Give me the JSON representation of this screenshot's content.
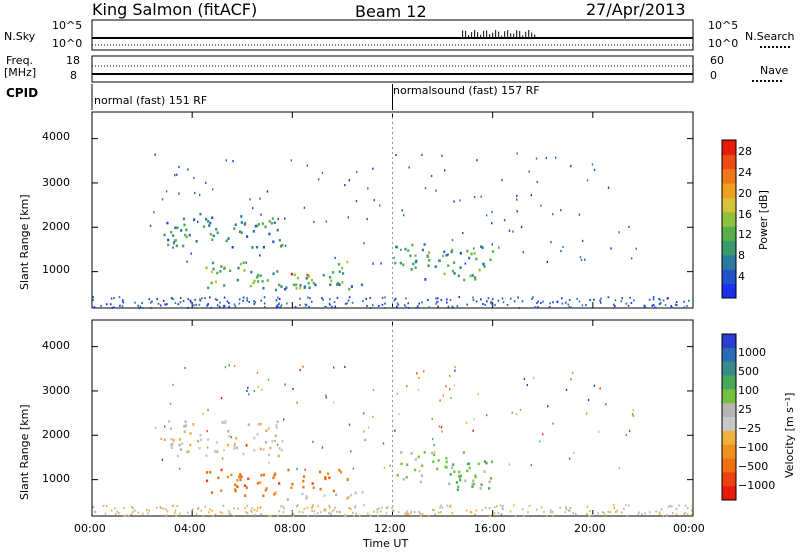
{
  "header": {
    "radar": "King Salmon (fitACF)",
    "beam": "Beam 12",
    "date": "27/Apr/2013"
  },
  "top_panels": {
    "nsky_label": "N.Sky",
    "nsky_ticks": [
      "10^5",
      "10^0"
    ],
    "nsearch_label": "N.Search",
    "nsearch_ticks": [
      "10^5",
      "10^0"
    ],
    "freq_label": "Freq.",
    "freq_unit": "[MHz]",
    "freq_ticks": [
      "18",
      "8"
    ],
    "nave_label": "Nave",
    "nave_ticks": [
      "60",
      "0"
    ],
    "cpid_label": "CPID",
    "cpid_segments": [
      {
        "label": "normal (fast) 151 RF",
        "start_hour": 0,
        "end_hour": 12
      },
      {
        "label": "normalsound (fast) 157 RF",
        "start_hour": 12,
        "end_hour": 24
      }
    ]
  },
  "chart_data": [
    {
      "type": "heatmap",
      "name": "power_panel",
      "ylabel": "Slant Range [km]",
      "ylim": [
        180,
        4600
      ],
      "yticks": [
        "1000",
        "2000",
        "3000",
        "4000"
      ],
      "xlim_hours": [
        0,
        24
      ],
      "colorbar": {
        "label": "Power [dB]",
        "ticks": [
          "4",
          "8",
          "12",
          "16",
          "20",
          "24",
          "28"
        ],
        "range": [
          0,
          30
        ],
        "colors": [
          "#1a2ff0",
          "#2152c8",
          "#2a7a9e",
          "#3b9a6a",
          "#55b04c",
          "#8ec23e",
          "#d7c23a",
          "#f0a020",
          "#f07818",
          "#ee4a14",
          "#e81a10"
        ]
      },
      "scatter_regions": [
        {
          "hour_start": 2.8,
          "hour_end": 7.6,
          "range_low": 1550,
          "range_high": 2350,
          "dominant_power": 8
        },
        {
          "hour_start": 4.5,
          "hour_end": 10.2,
          "range_low": 650,
          "range_high": 1250,
          "dominant_power": 12
        },
        {
          "hour_start": 7.6,
          "hour_end": 8.8,
          "range_low": 880,
          "range_high": 1000,
          "dominant_power": 30
        },
        {
          "hour_start": 12.0,
          "hour_end": 16.0,
          "range_low": 800,
          "range_high": 1650,
          "dominant_power": 10
        },
        {
          "hour_start": 7.0,
          "hour_end": 11.5,
          "range_low": 580,
          "range_high": 760,
          "dominant_power": 8
        }
      ]
    },
    {
      "type": "heatmap",
      "name": "velocity_panel",
      "xlabel": "Time UT",
      "ylabel": "Slant Range [km]",
      "ylim": [
        180,
        4600
      ],
      "yticks": [
        "1000",
        "2000",
        "3000",
        "4000"
      ],
      "xticks": [
        "00:00",
        "04:00",
        "08:00",
        "12:00",
        "16:00",
        "20:00",
        "00:00"
      ],
      "xlim_hours": [
        0,
        24
      ],
      "colorbar": {
        "label": "Velocity [m s⁻¹]",
        "ticks": [
          "1000",
          "500",
          "100",
          "25",
          "−25",
          "−100",
          "−500",
          "−1000"
        ],
        "colors": [
          "#2a3fd0",
          "#2a6ab8",
          "#3a8a8a",
          "#4aa85a",
          "#72c23e",
          "#b4b4b4",
          "#c8c8c8",
          "#f0b040",
          "#f09020",
          "#f07010",
          "#ee4010",
          "#e81a10"
        ]
      },
      "scatter_regions": [
        {
          "hour_start": 2.8,
          "hour_end": 7.6,
          "range_low": 1550,
          "range_high": 2350,
          "dominant_velocity": 0
        },
        {
          "hour_start": 4.5,
          "hour_end": 10.2,
          "range_low": 650,
          "range_high": 1250,
          "dominant_velocity": -150
        },
        {
          "hour_start": 12.0,
          "hour_end": 16.0,
          "range_low": 800,
          "range_high": 1650,
          "dominant_velocity": 150
        },
        {
          "hour_start": 7.0,
          "hour_end": 11.5,
          "range_low": 580,
          "range_high": 760,
          "dominant_velocity": 0
        }
      ]
    }
  ]
}
